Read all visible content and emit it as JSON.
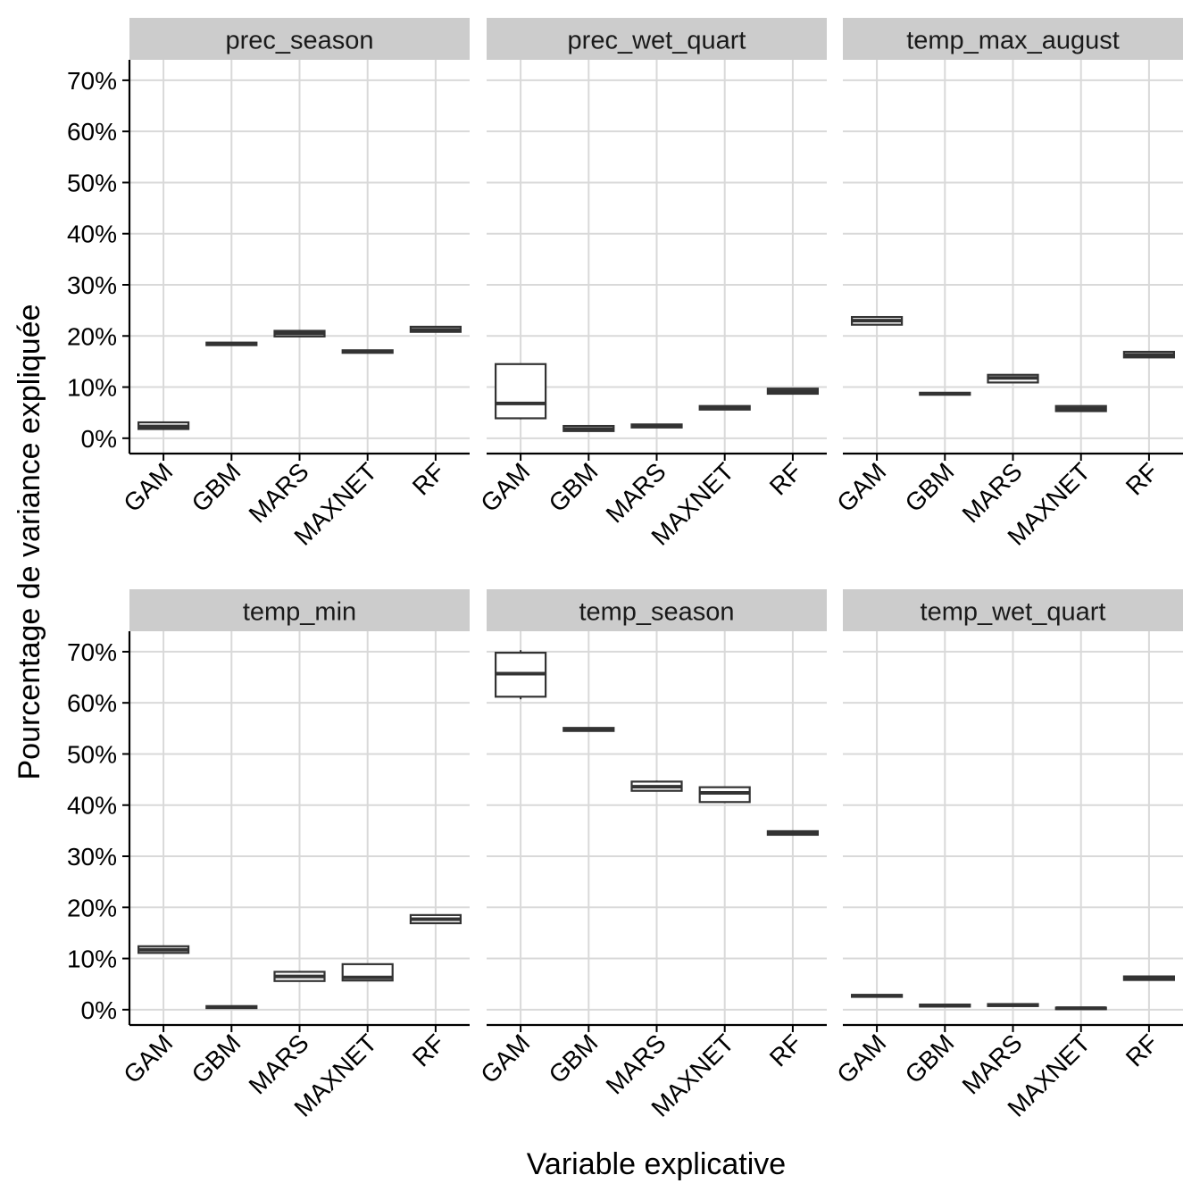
{
  "chart_data": {
    "type": "boxplot",
    "xlabel": "Variable explicative",
    "ylabel": "Pourcentage de variance expliquée",
    "categories": [
      "GAM",
      "GBM",
      "MARS",
      "MAXNET",
      "RF"
    ],
    "y_ticks": [
      0,
      10,
      20,
      30,
      40,
      50,
      60,
      70
    ],
    "y_tick_labels": [
      "0%",
      "10%",
      "20%",
      "30%",
      "40%",
      "50%",
      "60%",
      "70%"
    ],
    "ylim": [
      -3,
      74
    ],
    "grid": true,
    "facets": [
      {
        "title": "prec_season",
        "boxes": [
          {
            "category": "GAM",
            "min": 1.7,
            "q1": 1.8,
            "median": 2.3,
            "q3": 3.1,
            "max": 3.2
          },
          {
            "category": "GBM",
            "min": 18.1,
            "q1": 18.2,
            "median": 18.5,
            "q3": 18.7,
            "max": 18.8
          },
          {
            "category": "MARS",
            "min": 19.8,
            "q1": 19.9,
            "median": 20.5,
            "q3": 21.0,
            "max": 21.1
          },
          {
            "category": "MAXNET",
            "min": 16.6,
            "q1": 16.7,
            "median": 16.9,
            "q3": 17.2,
            "max": 17.3
          },
          {
            "category": "RF",
            "min": 20.7,
            "q1": 20.8,
            "median": 21.2,
            "q3": 21.8,
            "max": 21.9
          }
        ]
      },
      {
        "title": "prec_wet_quart",
        "boxes": [
          {
            "category": "GAM",
            "min": 3.7,
            "q1": 3.9,
            "median": 6.8,
            "q3": 14.5,
            "max": 14.6
          },
          {
            "category": "GBM",
            "min": 1.3,
            "q1": 1.4,
            "median": 1.8,
            "q3": 2.4,
            "max": 2.5
          },
          {
            "category": "MARS",
            "min": 2.0,
            "q1": 2.1,
            "median": 2.4,
            "q3": 2.7,
            "max": 2.8
          },
          {
            "category": "MAXNET",
            "min": 5.5,
            "q1": 5.6,
            "median": 5.9,
            "q3": 6.3,
            "max": 6.4
          },
          {
            "category": "RF",
            "min": 8.6,
            "q1": 8.7,
            "median": 9.2,
            "q3": 9.7,
            "max": 9.8
          }
        ]
      },
      {
        "title": "temp_max_august",
        "boxes": [
          {
            "category": "GAM",
            "min": 22.1,
            "q1": 22.2,
            "median": 23.0,
            "q3": 23.7,
            "max": 23.8
          },
          {
            "category": "GBM",
            "min": 8.4,
            "q1": 8.5,
            "median": 8.7,
            "q3": 8.9,
            "max": 9.0
          },
          {
            "category": "MARS",
            "min": 10.8,
            "q1": 10.9,
            "median": 11.8,
            "q3": 12.4,
            "max": 12.5
          },
          {
            "category": "MAXNET",
            "min": 5.2,
            "q1": 5.3,
            "median": 5.8,
            "q3": 6.3,
            "max": 6.4
          },
          {
            "category": "RF",
            "min": 15.7,
            "q1": 15.8,
            "median": 16.3,
            "q3": 16.9,
            "max": 17.0
          }
        ]
      },
      {
        "title": "temp_min",
        "boxes": [
          {
            "category": "GAM",
            "min": 11.0,
            "q1": 11.1,
            "median": 11.7,
            "q3": 12.4,
            "max": 12.5
          },
          {
            "category": "GBM",
            "min": 0.2,
            "q1": 0.3,
            "median": 0.5,
            "q3": 0.7,
            "max": 0.8
          },
          {
            "category": "MARS",
            "min": 5.5,
            "q1": 5.6,
            "median": 6.5,
            "q3": 7.4,
            "max": 7.5
          },
          {
            "category": "MAXNET",
            "min": 5.6,
            "q1": 5.7,
            "median": 6.3,
            "q3": 8.9,
            "max": 9.0
          },
          {
            "category": "RF",
            "min": 16.8,
            "q1": 16.9,
            "median": 17.7,
            "q3": 18.5,
            "max": 18.6
          }
        ]
      },
      {
        "title": "temp_season",
        "boxes": [
          {
            "category": "GAM",
            "min": 60.7,
            "q1": 61.2,
            "median": 65.7,
            "q3": 69.8,
            "max": 70.3
          },
          {
            "category": "GBM",
            "min": 54.4,
            "q1": 54.5,
            "median": 54.8,
            "q3": 55.1,
            "max": 55.2
          },
          {
            "category": "MARS",
            "min": 42.7,
            "q1": 42.8,
            "median": 43.6,
            "q3": 44.6,
            "max": 44.8
          },
          {
            "category": "MAXNET",
            "min": 40.4,
            "q1": 40.6,
            "median": 42.4,
            "q3": 43.5,
            "max": 43.6
          },
          {
            "category": "RF",
            "min": 34.1,
            "q1": 34.2,
            "median": 34.5,
            "q3": 34.9,
            "max": 35.0
          }
        ]
      },
      {
        "title": "temp_wet_quart",
        "boxes": [
          {
            "category": "GAM",
            "min": 2.4,
            "q1": 2.5,
            "median": 2.7,
            "q3": 2.9,
            "max": 3.0
          },
          {
            "category": "GBM",
            "min": 0.5,
            "q1": 0.6,
            "median": 0.8,
            "q3": 1.0,
            "max": 1.1
          },
          {
            "category": "MARS",
            "min": 0.6,
            "q1": 0.7,
            "median": 0.9,
            "q3": 1.1,
            "max": 1.2
          },
          {
            "category": "MAXNET",
            "min": 0.1,
            "q1": 0.1,
            "median": 0.3,
            "q3": 0.4,
            "max": 0.5
          },
          {
            "category": "RF",
            "min": 5.7,
            "q1": 5.8,
            "median": 6.1,
            "q3": 6.5,
            "max": 6.6
          }
        ]
      }
    ],
    "colors": {
      "strip_fill": "#cccccc",
      "grid": "#d9d9d9",
      "box_line": "#333333",
      "axis": "#000000",
      "text": "#000000"
    }
  }
}
